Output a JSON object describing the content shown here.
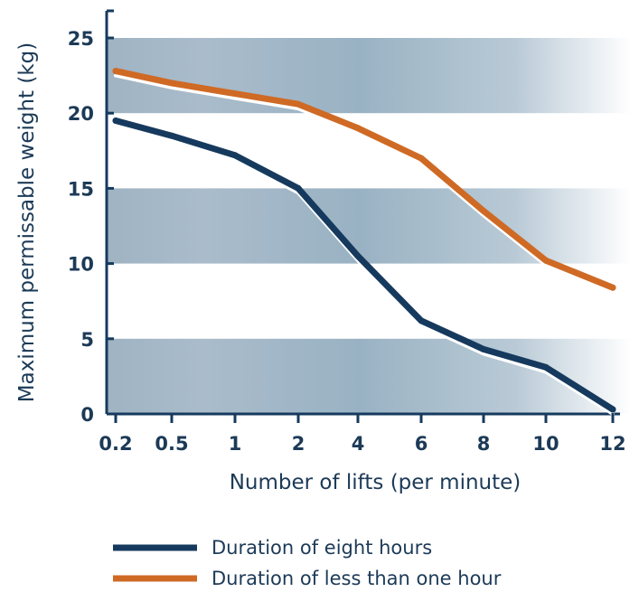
{
  "chart_data": {
    "type": "line",
    "title": "",
    "xlabel": "Number of lifts (per minute)",
    "ylabel": "Maximum permissable weight (kg)",
    "x_categories": [
      "0.2",
      "0.5",
      "1",
      "2",
      "4",
      "6",
      "8",
      "10",
      "12"
    ],
    "y_ticks": [
      0,
      5,
      10,
      15,
      20,
      25
    ],
    "ylim": [
      0,
      25
    ],
    "grid": "alternating horizontal bands",
    "legend_position": "bottom",
    "series": [
      {
        "name": "Duration of eight hours",
        "color": "#163a5e",
        "values": [
          19.5,
          18.5,
          17.2,
          15.0,
          10.5,
          6.2,
          4.3,
          3.1,
          0.3
        ]
      },
      {
        "name": "Duration of less than one hour",
        "color": "#cf6a25",
        "values": [
          22.8,
          22.0,
          21.3,
          20.6,
          19.0,
          17.0,
          13.5,
          10.2,
          8.4
        ]
      }
    ]
  }
}
